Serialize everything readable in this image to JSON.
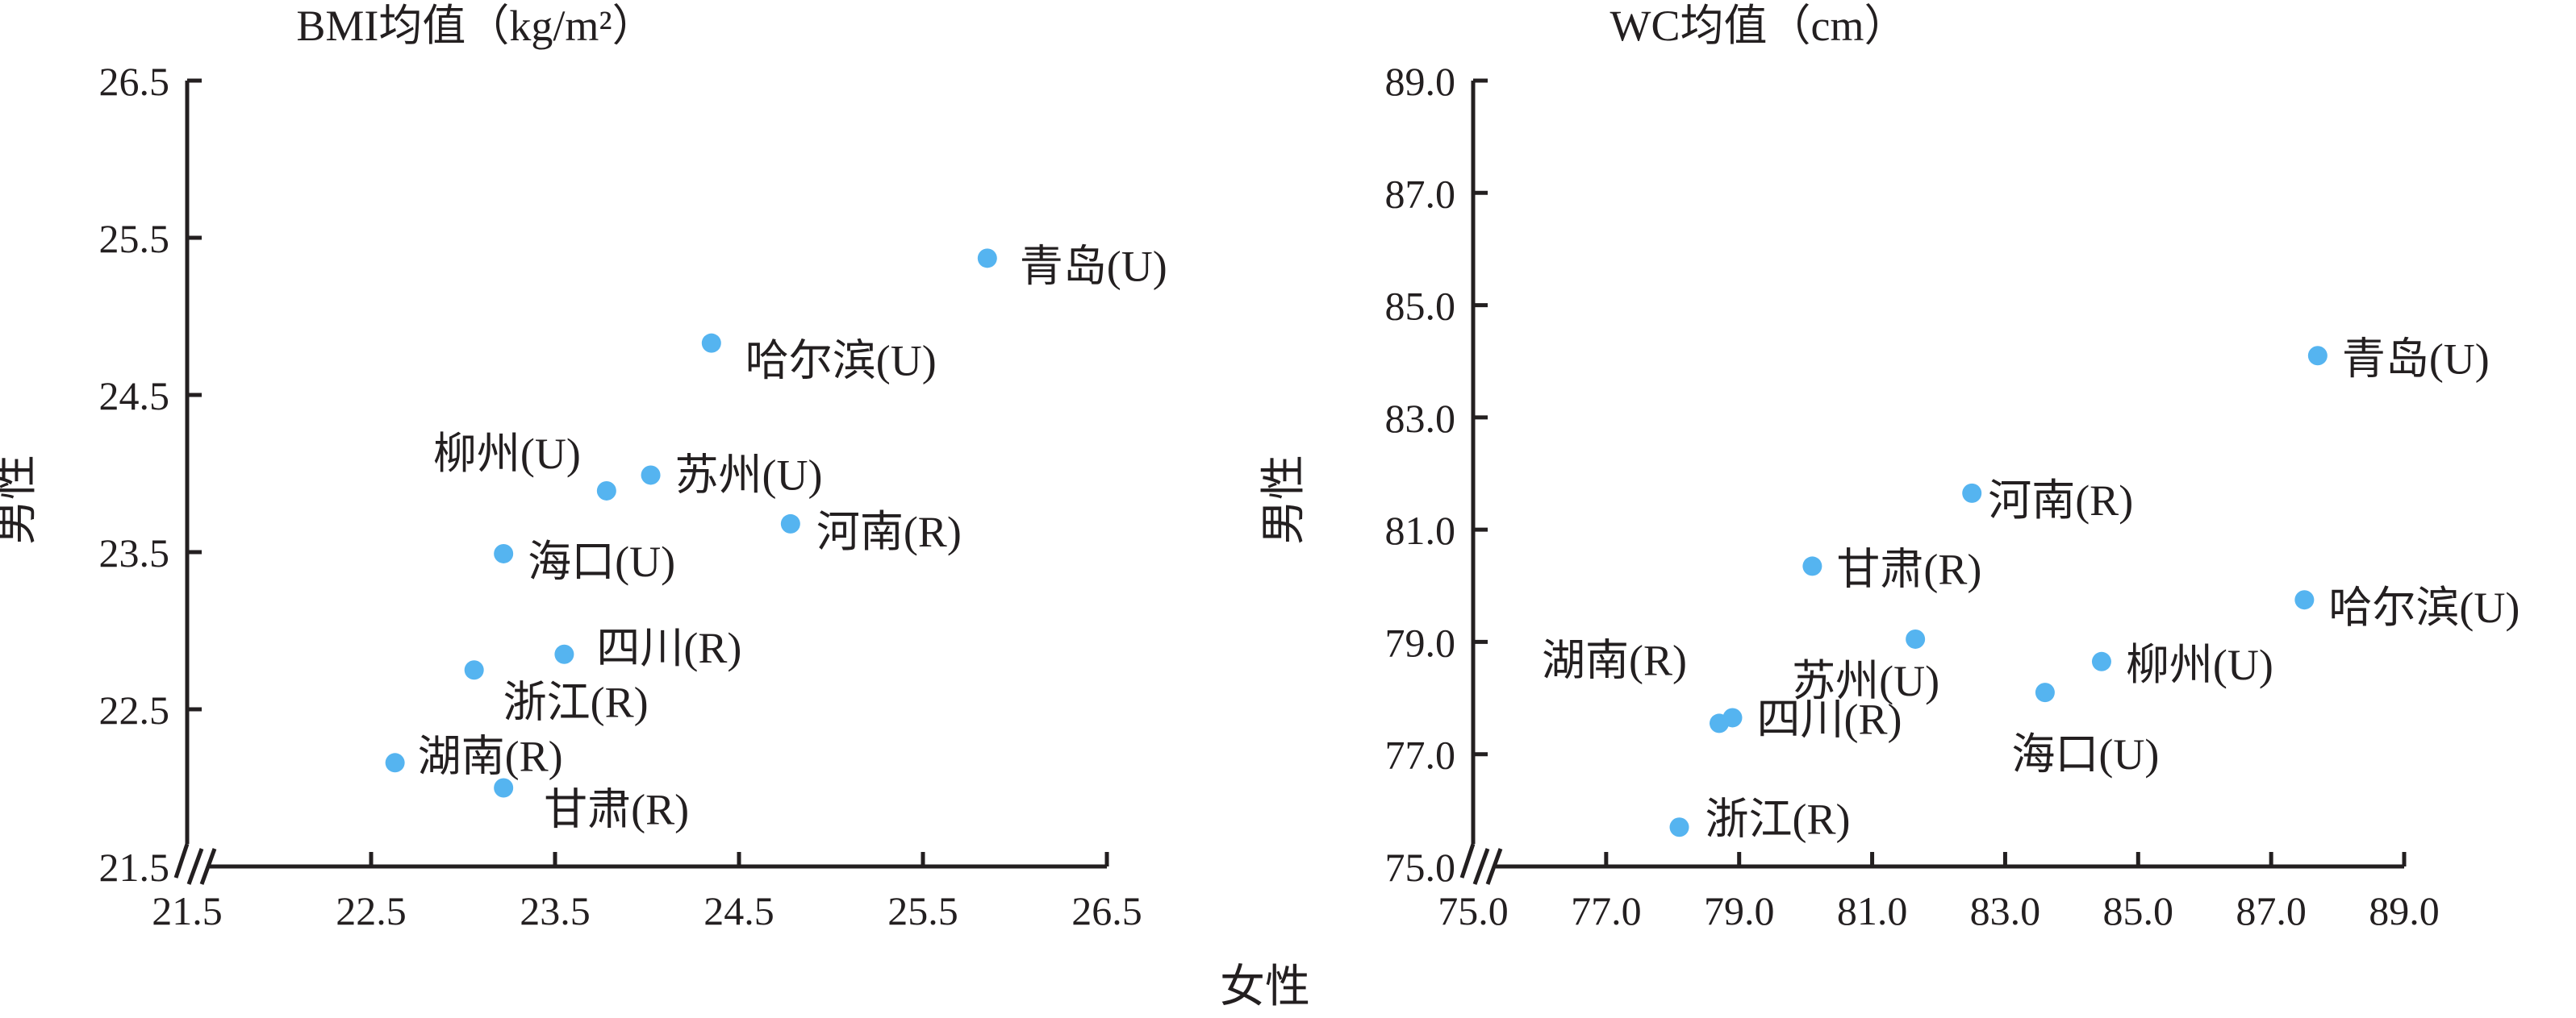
{
  "shared": {
    "xlabel": "女性",
    "ylabel": "男性",
    "point_color": "#55b4f0",
    "axis_color": "#231f20"
  },
  "chart_data": [
    {
      "type": "scatter",
      "title": "BMI均值（kg/m²）",
      "xlabel": "女性",
      "ylabel": "男性",
      "xlim": [
        21.5,
        26.5
      ],
      "ylim": [
        21.5,
        26.5
      ],
      "xticks": [
        "21.5",
        "22.5",
        "23.5",
        "24.5",
        "25.5",
        "26.5"
      ],
      "yticks": [
        "21.5",
        "22.5",
        "23.5",
        "24.5",
        "25.5",
        "26.5"
      ],
      "axis_break": true,
      "points": [
        {
          "label": "青岛(U)",
          "x": 25.85,
          "y": 25.37
        },
        {
          "label": "哈尔滨(U)",
          "x": 24.35,
          "y": 24.83
        },
        {
          "label": "柳州(U)",
          "x": 23.78,
          "y": 23.89
        },
        {
          "label": "苏州(U)",
          "x": 24.02,
          "y": 23.99
        },
        {
          "label": "河南(R)",
          "x": 24.78,
          "y": 23.68
        },
        {
          "label": "海口(U)",
          "x": 23.22,
          "y": 23.49
        },
        {
          "label": "四川(R)",
          "x": 23.55,
          "y": 22.85
        },
        {
          "label": "浙江(R)",
          "x": 23.06,
          "y": 22.75
        },
        {
          "label": "湖南(R)",
          "x": 22.63,
          "y": 22.16
        },
        {
          "label": "甘肃(R)",
          "x": 23.22,
          "y": 22.0
        }
      ]
    },
    {
      "type": "scatter",
      "title": "WC均值（cm）",
      "xlabel": "女性",
      "ylabel": "男性",
      "xlim": [
        75.0,
        89.0
      ],
      "ylim": [
        75.0,
        89.0
      ],
      "xticks": [
        "75.0",
        "77.0",
        "79.0",
        "81.0",
        "83.0",
        "85.0",
        "87.0",
        "89.0"
      ],
      "yticks": [
        "75.0",
        "77.0",
        "79.0",
        "81.0",
        "83.0",
        "85.0",
        "87.0",
        "89.0"
      ],
      "axis_break": true,
      "points": [
        {
          "label": "青岛(U)",
          "x": 87.7,
          "y": 84.1
        },
        {
          "label": "河南(R)",
          "x": 82.5,
          "y": 81.65
        },
        {
          "label": "甘肃(R)",
          "x": 80.1,
          "y": 80.35
        },
        {
          "label": "哈尔滨(U)",
          "x": 87.5,
          "y": 79.75
        },
        {
          "label": "苏州(U)",
          "x": 81.65,
          "y": 79.05
        },
        {
          "label": "柳州(U)",
          "x": 84.45,
          "y": 78.65
        },
        {
          "label": "海口(U)",
          "x": 83.6,
          "y": 78.1
        },
        {
          "label": "湖南(R)",
          "x": 78.7,
          "y": 77.55
        },
        {
          "label": "四川(R)",
          "x": 78.9,
          "y": 77.65
        },
        {
          "label": "浙江(R)",
          "x": 78.1,
          "y": 75.7
        }
      ]
    }
  ]
}
